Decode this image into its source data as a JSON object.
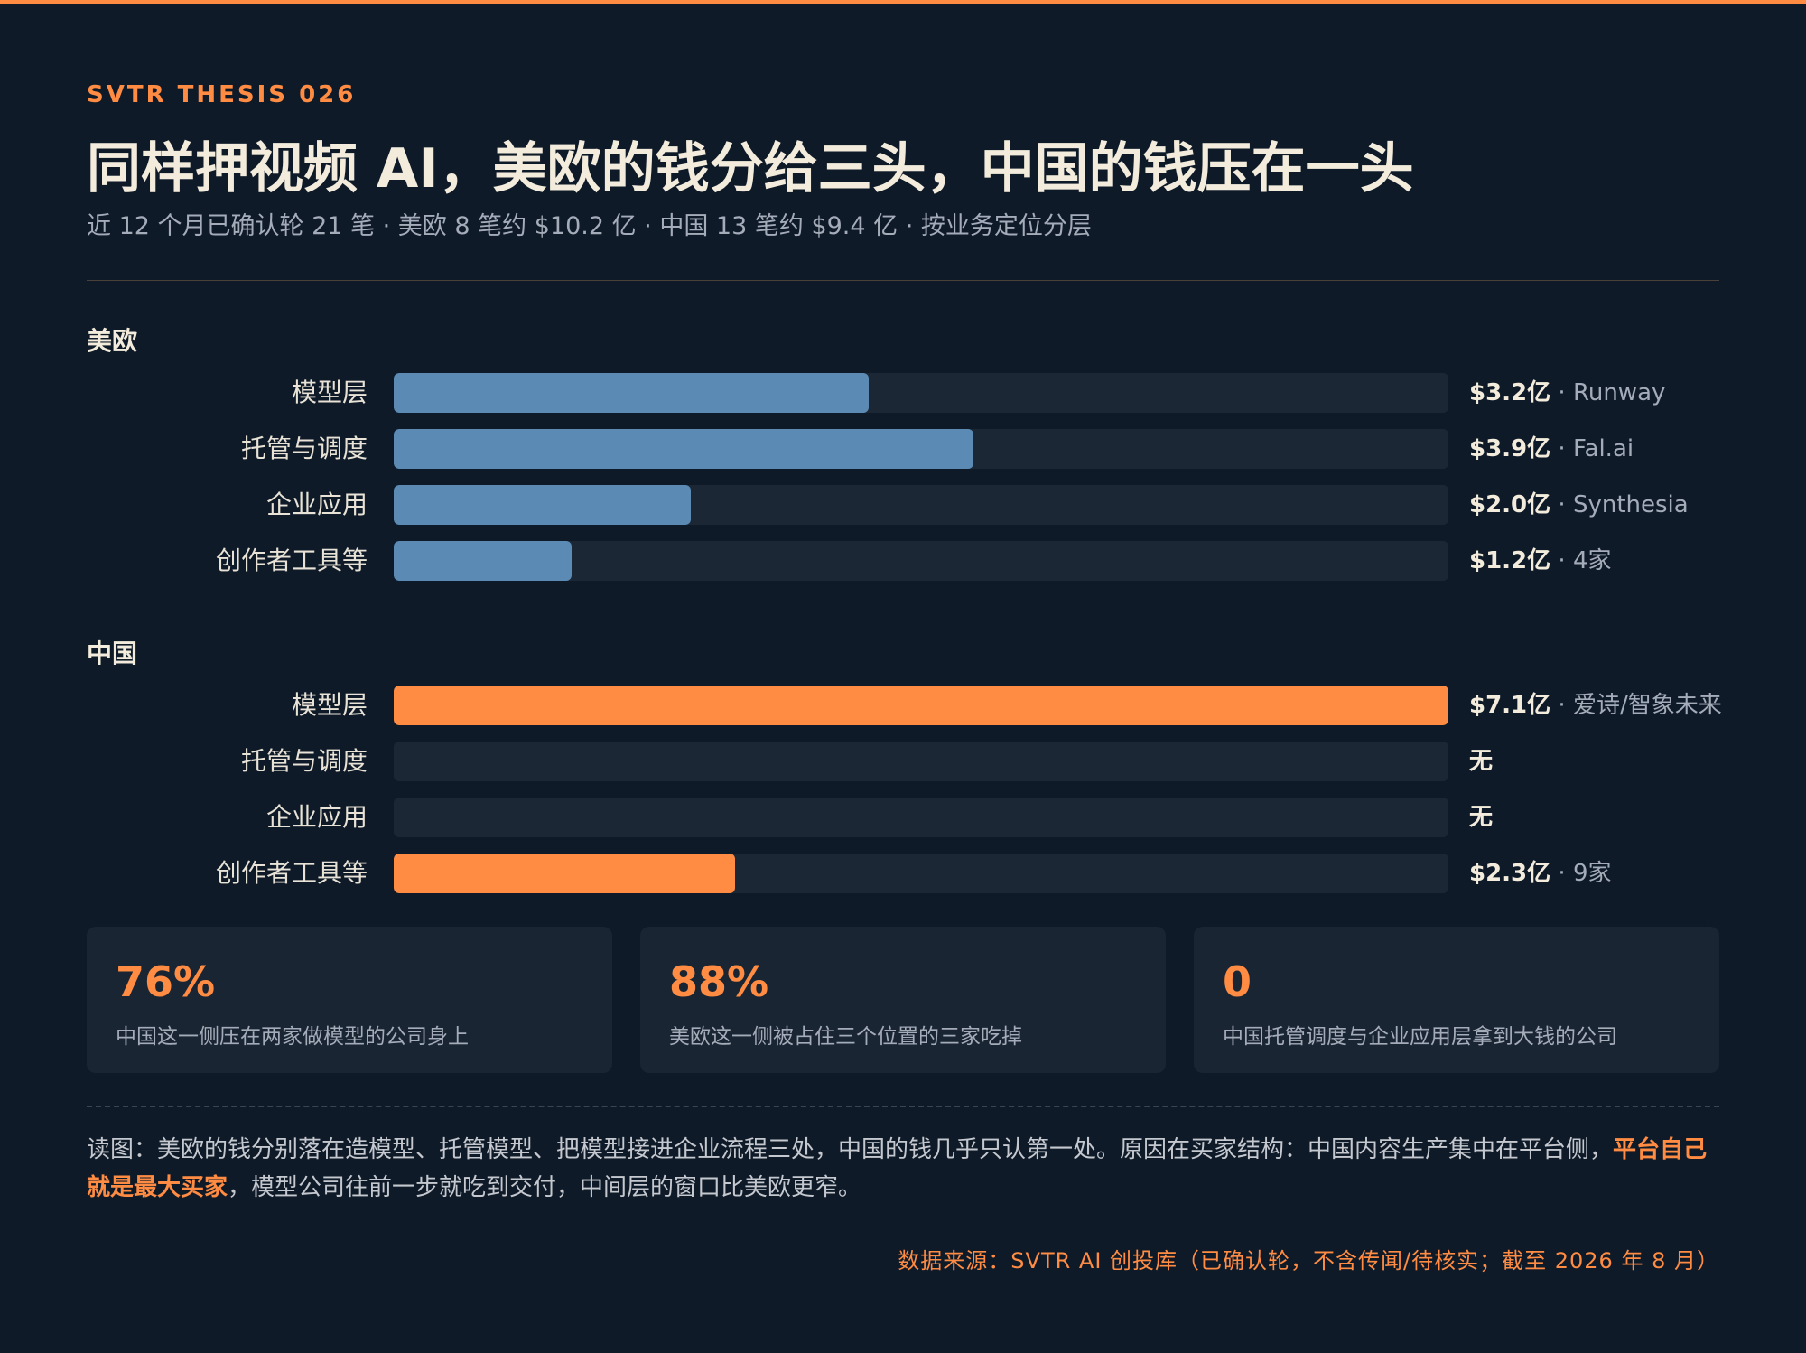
{
  "header": {
    "kicker": "SVTR THESIS 026",
    "title": "同样押视频 AI，美欧的钱分给三头，中国的钱压在一头",
    "subtitle": "近 12 个月已确认轮 21 笔 · 美欧 8 笔约 $10.2 亿 · 中国 13 笔约 $9.4 亿 · 按业务定位分层"
  },
  "colors": {
    "us_eu_bar": "#5b8bb5",
    "china_bar": "#ff8c42",
    "accent": "#ff8c42",
    "background": "#0f1a29",
    "track": "#1c2735"
  },
  "chart_data": {
    "type": "bar",
    "orientation": "horizontal",
    "unit": "亿美元",
    "xlim": [
      0,
      7.1
    ],
    "groups": [
      {
        "name": "美欧",
        "color": "#5b8bb5",
        "rows": [
          {
            "category": "模型层",
            "value": 3.2,
            "value_label": "$3.2亿",
            "note": "Runway"
          },
          {
            "category": "托管与调度",
            "value": 3.9,
            "value_label": "$3.9亿",
            "note": "Fal.ai"
          },
          {
            "category": "企业应用",
            "value": 2.0,
            "value_label": "$2.0亿",
            "note": "Synthesia"
          },
          {
            "category": "创作者工具等",
            "value": 1.2,
            "value_label": "$1.2亿",
            "note": "4家"
          }
        ]
      },
      {
        "name": "中国",
        "color": "#ff8c42",
        "rows": [
          {
            "category": "模型层",
            "value": 7.1,
            "value_label": "$7.1亿",
            "note": "爱诗/智象未来"
          },
          {
            "category": "托管与调度",
            "value": 0,
            "value_label": "无",
            "note": ""
          },
          {
            "category": "企业应用",
            "value": 0,
            "value_label": "无",
            "note": ""
          },
          {
            "category": "创作者工具等",
            "value": 2.3,
            "value_label": "$2.3亿",
            "note": "9家"
          }
        ]
      }
    ]
  },
  "stats": [
    {
      "value": "76%",
      "desc": "中国这一侧压在两家做模型的公司身上"
    },
    {
      "value": "88%",
      "desc": "美欧这一侧被占住三个位置的三家吃掉"
    },
    {
      "value": "0",
      "desc": "中国托管调度与企业应用层拿到大钱的公司"
    }
  ],
  "reading": {
    "before": "读图：美欧的钱分别落在造模型、托管模型、把模型接进企业流程三处，中国的钱几乎只认第一处。原因在买家结构：中国内容生产集中在平台侧，",
    "highlight": "平台自己就是最大买家",
    "after": "，模型公司往前一步就吃到交付，中间层的窗口比美欧更窄。"
  },
  "source": "数据来源：SVTR AI 创投库（已确认轮，不含传闻/待核实；截至 2026 年 8 月）"
}
